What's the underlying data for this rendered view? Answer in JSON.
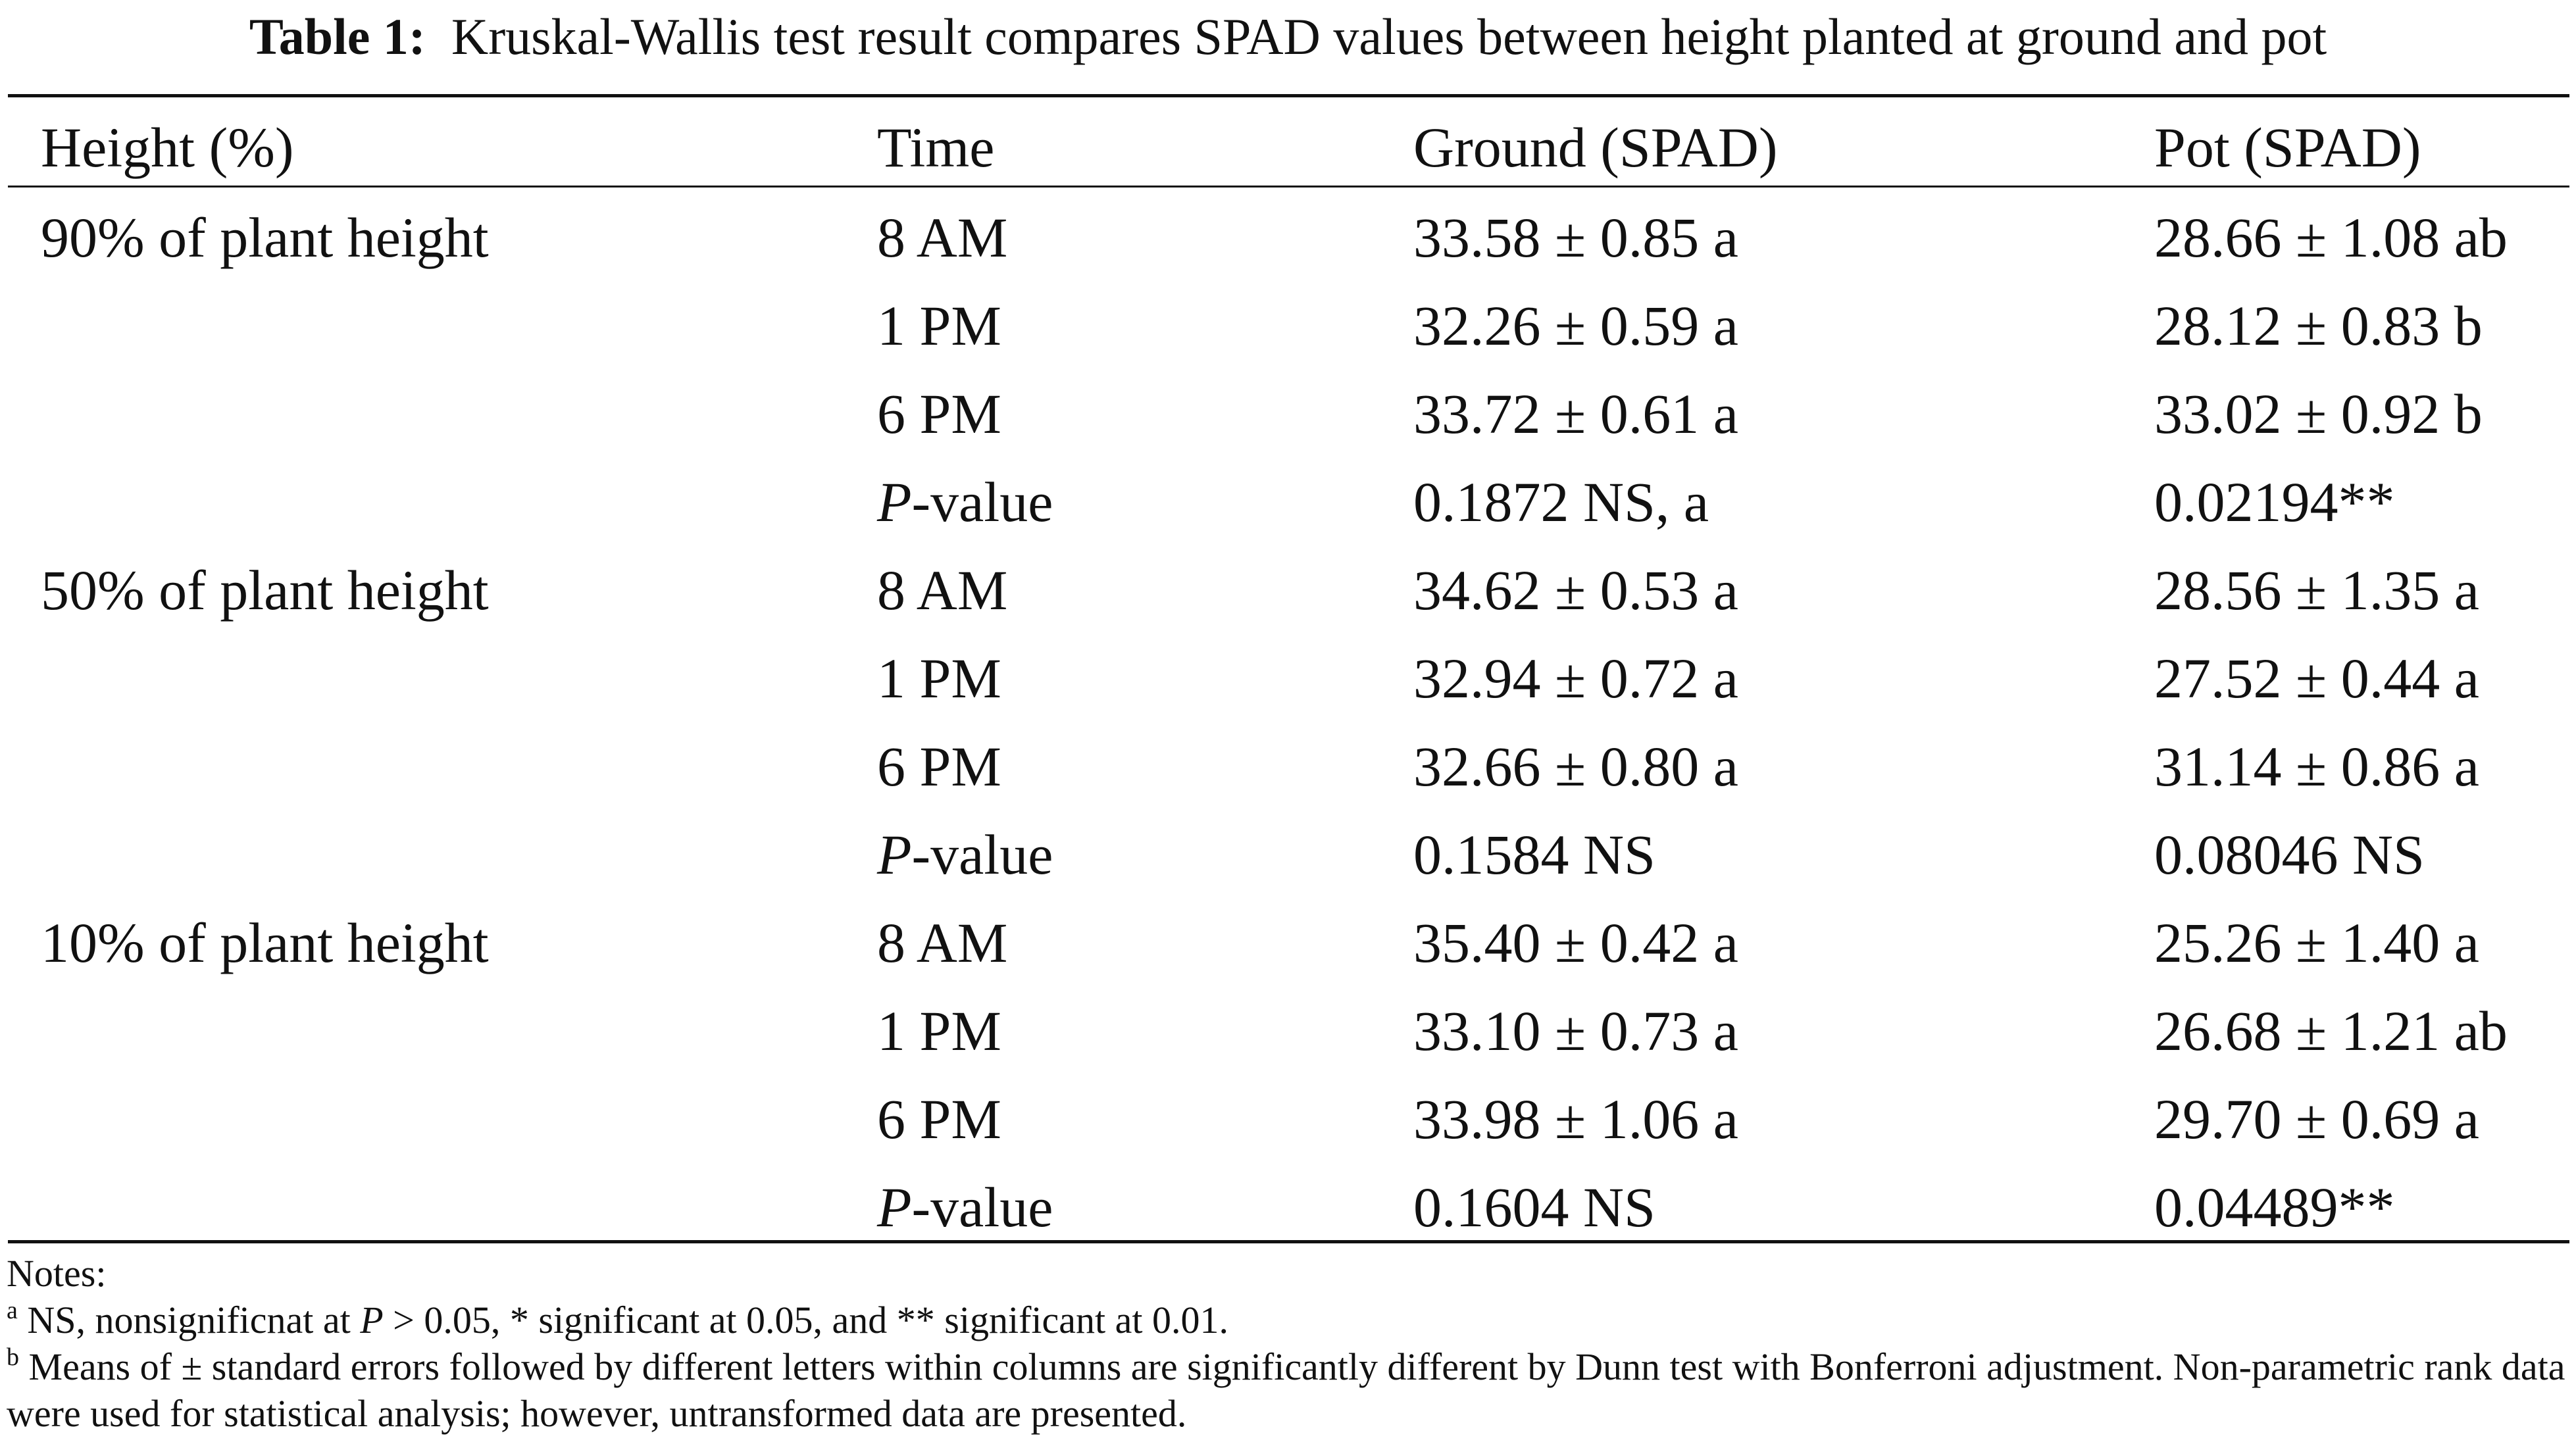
{
  "caption": {
    "label": "Table 1:",
    "text": "Kruskal-Wallis test result compares SPAD values between height planted at ground and pot"
  },
  "columns": [
    "Height (%)",
    "Time",
    "Ground (SPAD)",
    "Pot (SPAD)"
  ],
  "groups": [
    {
      "height": "90% of plant height",
      "rows": [
        {
          "time": "8 AM",
          "ground": "33.58 ± 0.85 a",
          "pot": "28.66 ± 1.08 ab"
        },
        {
          "time": "1 PM",
          "ground": "32.26 ± 0.59 a",
          "pot": "28.12 ± 0.83 b"
        },
        {
          "time": "6 PM",
          "ground": "33.72 ± 0.61 a",
          "pot": "33.02 ± 0.92 b"
        }
      ],
      "pvalue": {
        "label_p": "P",
        "label_rest": "-value",
        "ground": "0.1872 NS, a",
        "pot": "0.02194**"
      }
    },
    {
      "height": "50% of plant height",
      "rows": [
        {
          "time": "8 AM",
          "ground": "34.62 ± 0.53 a",
          "pot": "28.56 ± 1.35 a"
        },
        {
          "time": "1 PM",
          "ground": "32.94 ± 0.72 a",
          "pot": "27.52 ± 0.44 a"
        },
        {
          "time": "6 PM",
          "ground": "32.66 ± 0.80 a",
          "pot": "31.14 ± 0.86 a"
        }
      ],
      "pvalue": {
        "label_p": "P",
        "label_rest": "-value",
        "ground": "0.1584 NS",
        "pot": "0.08046 NS"
      }
    },
    {
      "height": "10% of plant height",
      "rows": [
        {
          "time": "8 AM",
          "ground": "35.40 ± 0.42 a",
          "pot": "25.26 ± 1.40 a"
        },
        {
          "time": "1 PM",
          "ground": "33.10 ± 0.73 a",
          "pot": "26.68 ± 1.21 ab"
        },
        {
          "time": "6 PM",
          "ground": "33.98 ± 1.06 a",
          "pot": "29.70 ± 0.69 a"
        }
      ],
      "pvalue": {
        "label_p": "P",
        "label_rest": "-value",
        "ground": "0.1604 NS",
        "pot": "0.04489**"
      }
    }
  ],
  "notes": {
    "heading": "Notes:",
    "a": {
      "marker": "a",
      "before": " NS, nonsignificnat at ",
      "p": "P",
      "after": " > 0.05, * significant at 0.05, and ** significant at 0.01."
    },
    "b": {
      "marker": "b",
      "text": " Means of ± standard errors followed by different letters within columns are significantly different by Dunn test with Bonferroni adjustment. Non-parametric rank data were used for statistical analysis; however, untransformed data are presented."
    }
  }
}
